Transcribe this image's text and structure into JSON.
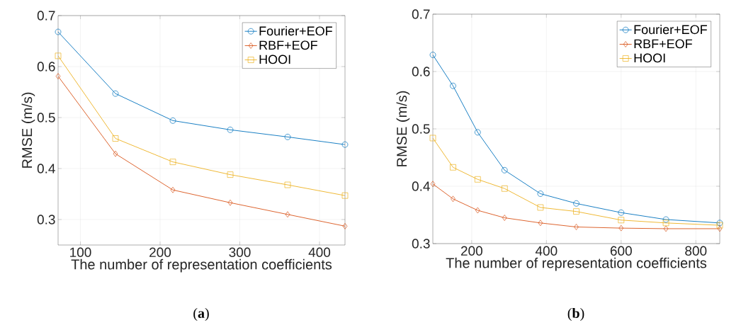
{
  "chart_data": [
    {
      "type": "line",
      "xlabel": "The number of representation coefficients",
      "ylabel": "RMSE (m/s)",
      "annotations": [
        "(**a**)"
      ],
      "x": [
        72,
        144,
        216,
        288,
        360,
        432
      ],
      "series": [
        {
          "name": "Fourier+EOF",
          "color": "#0072bd",
          "marker": "circle",
          "values": [
            0.668,
            0.547,
            0.494,
            0.476,
            0.462,
            0.447
          ]
        },
        {
          "name": "RBF+EOF",
          "color": "#d95319",
          "marker": "diamond",
          "values": [
            0.581,
            0.429,
            0.358,
            0.333,
            0.31,
            0.287
          ]
        },
        {
          "name": "HOOI",
          "color": "#edb120",
          "marker": "square",
          "values": [
            0.621,
            0.459,
            0.413,
            0.388,
            0.368,
            0.347
          ]
        }
      ],
      "xlim": [
        72,
        432
      ],
      "ylim": [
        0.25,
        0.7
      ],
      "xticks": [
        100,
        200,
        300,
        400
      ],
      "yticks": [
        0.3,
        0.4,
        0.5,
        0.6,
        0.7
      ],
      "grid": true,
      "legend": "top right"
    },
    {
      "type": "line",
      "xlabel": "The number of representation coefficients",
      "ylabel": "RMSE (m/s)",
      "annotations": [
        "(**b**)"
      ],
      "x": [
        96,
        150,
        216,
        288,
        384,
        480,
        600,
        720,
        864
      ],
      "series": [
        {
          "name": "Fourier+EOF",
          "color": "#0072bd",
          "marker": "circle",
          "values": [
            0.629,
            0.575,
            0.494,
            0.428,
            0.387,
            0.37,
            0.354,
            0.342,
            0.336
          ]
        },
        {
          "name": "RBF+EOF",
          "color": "#d95319",
          "marker": "diamond",
          "values": [
            0.404,
            0.378,
            0.358,
            0.345,
            0.336,
            0.329,
            0.327,
            0.326,
            0.326
          ]
        },
        {
          "name": "HOOI",
          "color": "#edb120",
          "marker": "square",
          "values": [
            0.484,
            0.433,
            0.412,
            0.396,
            0.363,
            0.356,
            0.341,
            0.336,
            0.332
          ]
        }
      ],
      "xlim": [
        96,
        864
      ],
      "ylim": [
        0.3,
        0.7
      ],
      "xticks": [
        200,
        400,
        600,
        800
      ],
      "yticks": [
        0.3,
        0.4,
        0.5,
        0.6,
        0.7
      ],
      "grid": true,
      "legend": "top right"
    }
  ]
}
